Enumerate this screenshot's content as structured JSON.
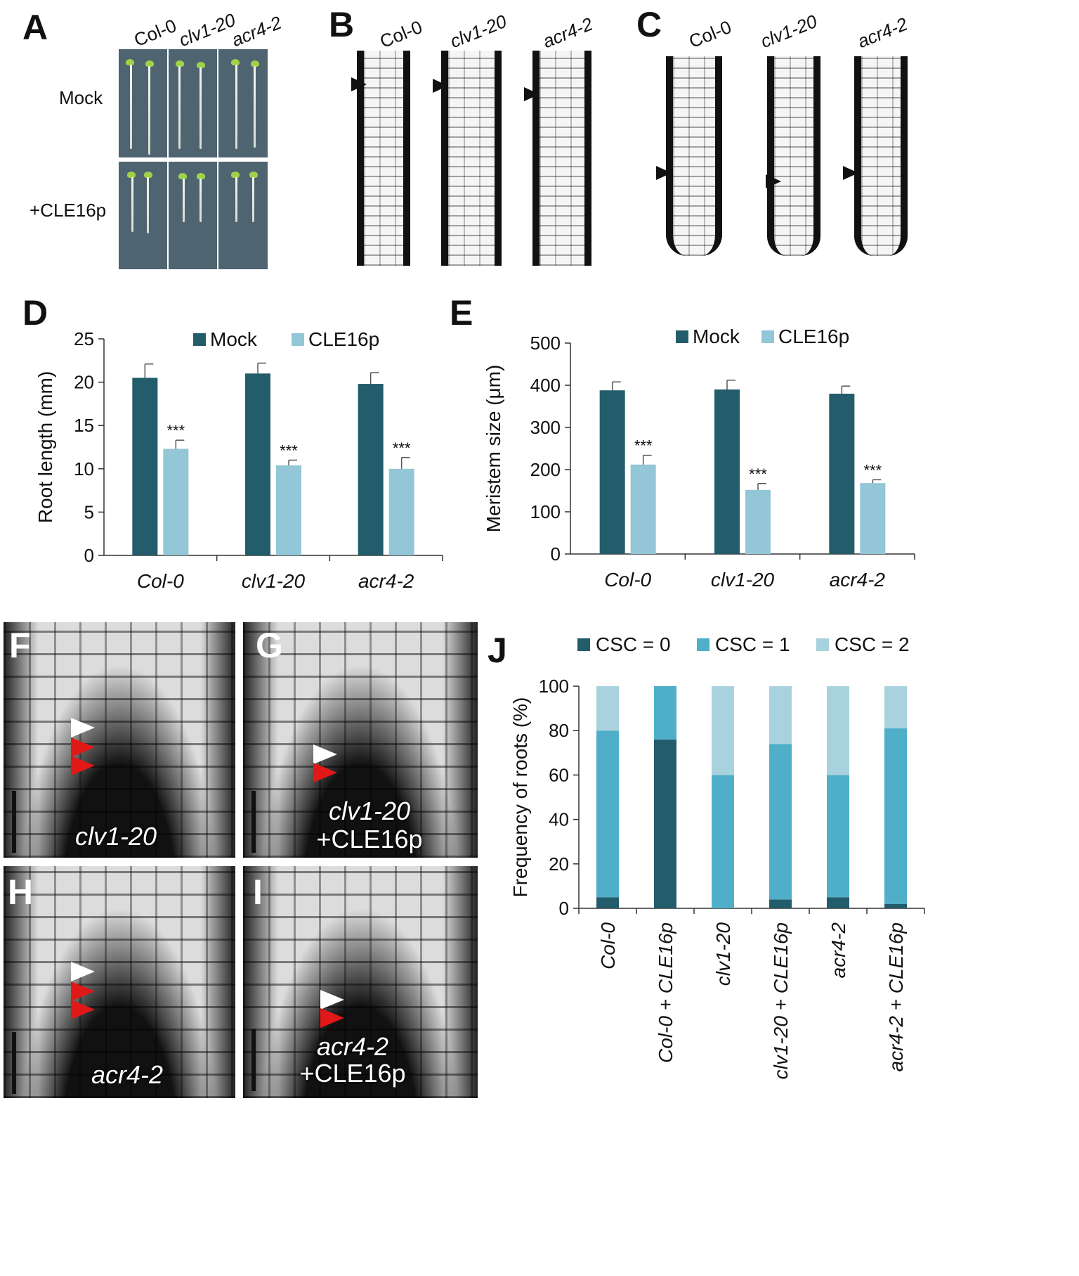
{
  "panels": {
    "A": {
      "letter": "A",
      "cols": [
        "Col-0",
        "clv1-20",
        "acr4-2"
      ],
      "rows": [
        "Mock",
        "+CLE16p"
      ]
    },
    "B": {
      "letter": "B",
      "cols": [
        "Col-0",
        "clv1-20",
        "acr4-2"
      ]
    },
    "C": {
      "letter": "C",
      "cols": [
        "Col-0",
        "clv1-20",
        "acr4-2"
      ]
    },
    "D": {
      "letter": "D"
    },
    "E": {
      "letter": "E"
    },
    "F": {
      "letter": "F",
      "caption": "clv1-20"
    },
    "G": {
      "letter": "G",
      "caption": "clv1-20",
      "caption2": "+CLE16p"
    },
    "H": {
      "letter": "H",
      "caption": "acr4-2"
    },
    "I": {
      "letter": "I",
      "caption": "acr4-2",
      "caption2": "+CLE16p"
    },
    "J": {
      "letter": "J"
    }
  },
  "colors": {
    "dark": "#235c6b",
    "light": "#93c6d6",
    "mid": "#4fafc9",
    "pale": "#a9d2df"
  },
  "chart_data": [
    {
      "id": "D",
      "type": "bar",
      "categories": [
        "Col-0",
        "clv1-20",
        "acr4-2"
      ],
      "series": [
        {
          "name": "Mock",
          "values": [
            20.5,
            21.0,
            19.8
          ],
          "errors": [
            1.6,
            1.2,
            1.3
          ]
        },
        {
          "name": "CLE16p",
          "values": [
            12.3,
            10.4,
            10.0
          ],
          "errors": [
            1.0,
            0.6,
            1.3
          ]
        }
      ],
      "annotations": [
        "***",
        "***",
        "***"
      ],
      "ylabel": "Root length (mm)",
      "ylim": [
        0,
        25
      ],
      "yticks": [
        0,
        5,
        10,
        15,
        20,
        25
      ],
      "legend": "top"
    },
    {
      "id": "E",
      "type": "bar",
      "categories": [
        "Col-0",
        "clv1-20",
        "acr4-2"
      ],
      "series": [
        {
          "name": "Mock",
          "values": [
            388,
            390,
            380
          ],
          "errors": [
            20,
            22,
            18
          ]
        },
        {
          "name": "CLE16p",
          "values": [
            212,
            152,
            168
          ],
          "errors": [
            22,
            15,
            8
          ]
        }
      ],
      "annotations": [
        "***",
        "***",
        "***"
      ],
      "ylabel": "Meristem size (μm)",
      "ylim": [
        0,
        500
      ],
      "yticks": [
        0,
        100,
        200,
        300,
        400,
        500
      ],
      "legend": "top"
    },
    {
      "id": "J",
      "type": "bar",
      "stacked": true,
      "categories": [
        "Col-0",
        "Col-0 + CLE16p",
        "clv1-20",
        "clv1-20 + CLE16p",
        "acr4-2",
        "acr4-2 + CLE16p"
      ],
      "series": [
        {
          "name": "CSC = 0",
          "values": [
            5,
            76,
            0,
            4,
            5,
            2
          ]
        },
        {
          "name": "CSC = 1",
          "values": [
            75,
            24,
            60,
            70,
            55,
            79
          ]
        },
        {
          "name": "CSC = 2",
          "values": [
            20,
            0,
            40,
            26,
            40,
            19
          ]
        }
      ],
      "ylabel": "Frequency of roots (%)",
      "ylim": [
        0,
        100
      ],
      "yticks": [
        0,
        20,
        40,
        60,
        80,
        100
      ],
      "legend": "top"
    }
  ]
}
